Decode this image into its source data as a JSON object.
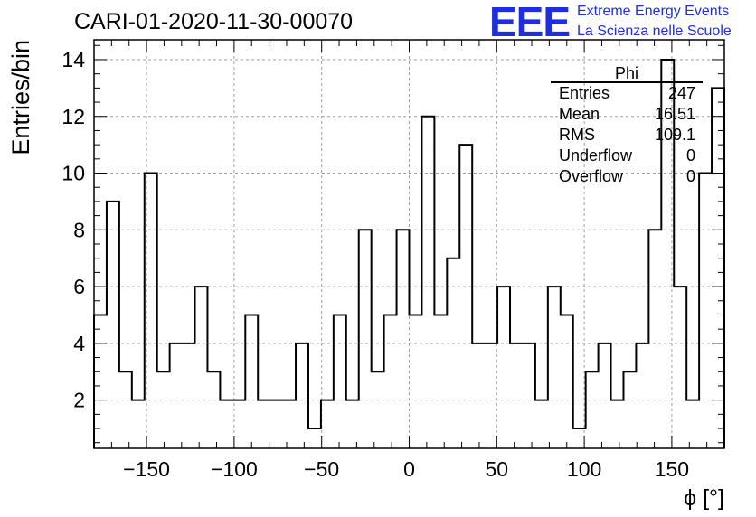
{
  "chart_data": {
    "type": "histogram",
    "title": "CARI-01-2020-11-30-00070",
    "xlabel": "ϕ [°]",
    "ylabel": "Entries/bin",
    "xlim": [
      -180,
      180
    ],
    "ylim": [
      0.3,
      14.7
    ],
    "bin_width": 7.2,
    "x_ticks": [
      -150,
      -100,
      -50,
      0,
      50,
      100,
      150
    ],
    "x_tick_labels": [
      "−150",
      "−100",
      "−50",
      "0",
      "50",
      "100",
      "150"
    ],
    "y_ticks": [
      2,
      4,
      6,
      8,
      10,
      12,
      14
    ],
    "y_tick_labels": [
      "2",
      "4",
      "6",
      "8",
      "10",
      "12",
      "14"
    ],
    "grid": true,
    "values": [
      5,
      9,
      3,
      2,
      10,
      3,
      4,
      4,
      6,
      3,
      2,
      2,
      5,
      2,
      2,
      2,
      4,
      1,
      2,
      5,
      2,
      8,
      3,
      5,
      8,
      5,
      12,
      5,
      7,
      11,
      4,
      4,
      6,
      4,
      4,
      2,
      6,
      5,
      1,
      3,
      4,
      2,
      3,
      4,
      8,
      14,
      6,
      2,
      10,
      13
    ],
    "stats_box": {
      "name": "Phi",
      "rows": [
        {
          "label": "Entries",
          "value": "247"
        },
        {
          "label": "Mean",
          "value": "16.51"
        },
        {
          "label": "RMS",
          "value": "109.1"
        },
        {
          "label": "Underflow",
          "value": "0"
        },
        {
          "label": "Overflow",
          "value": "0"
        }
      ]
    }
  },
  "logo": {
    "mark": "EEE",
    "line1": "Extreme Energy Events",
    "line2": "La Scienza nelle Scuole"
  },
  "colors": {
    "line": "#000000",
    "grid": "#a0a0a0",
    "logo": "#1f2fe0"
  }
}
